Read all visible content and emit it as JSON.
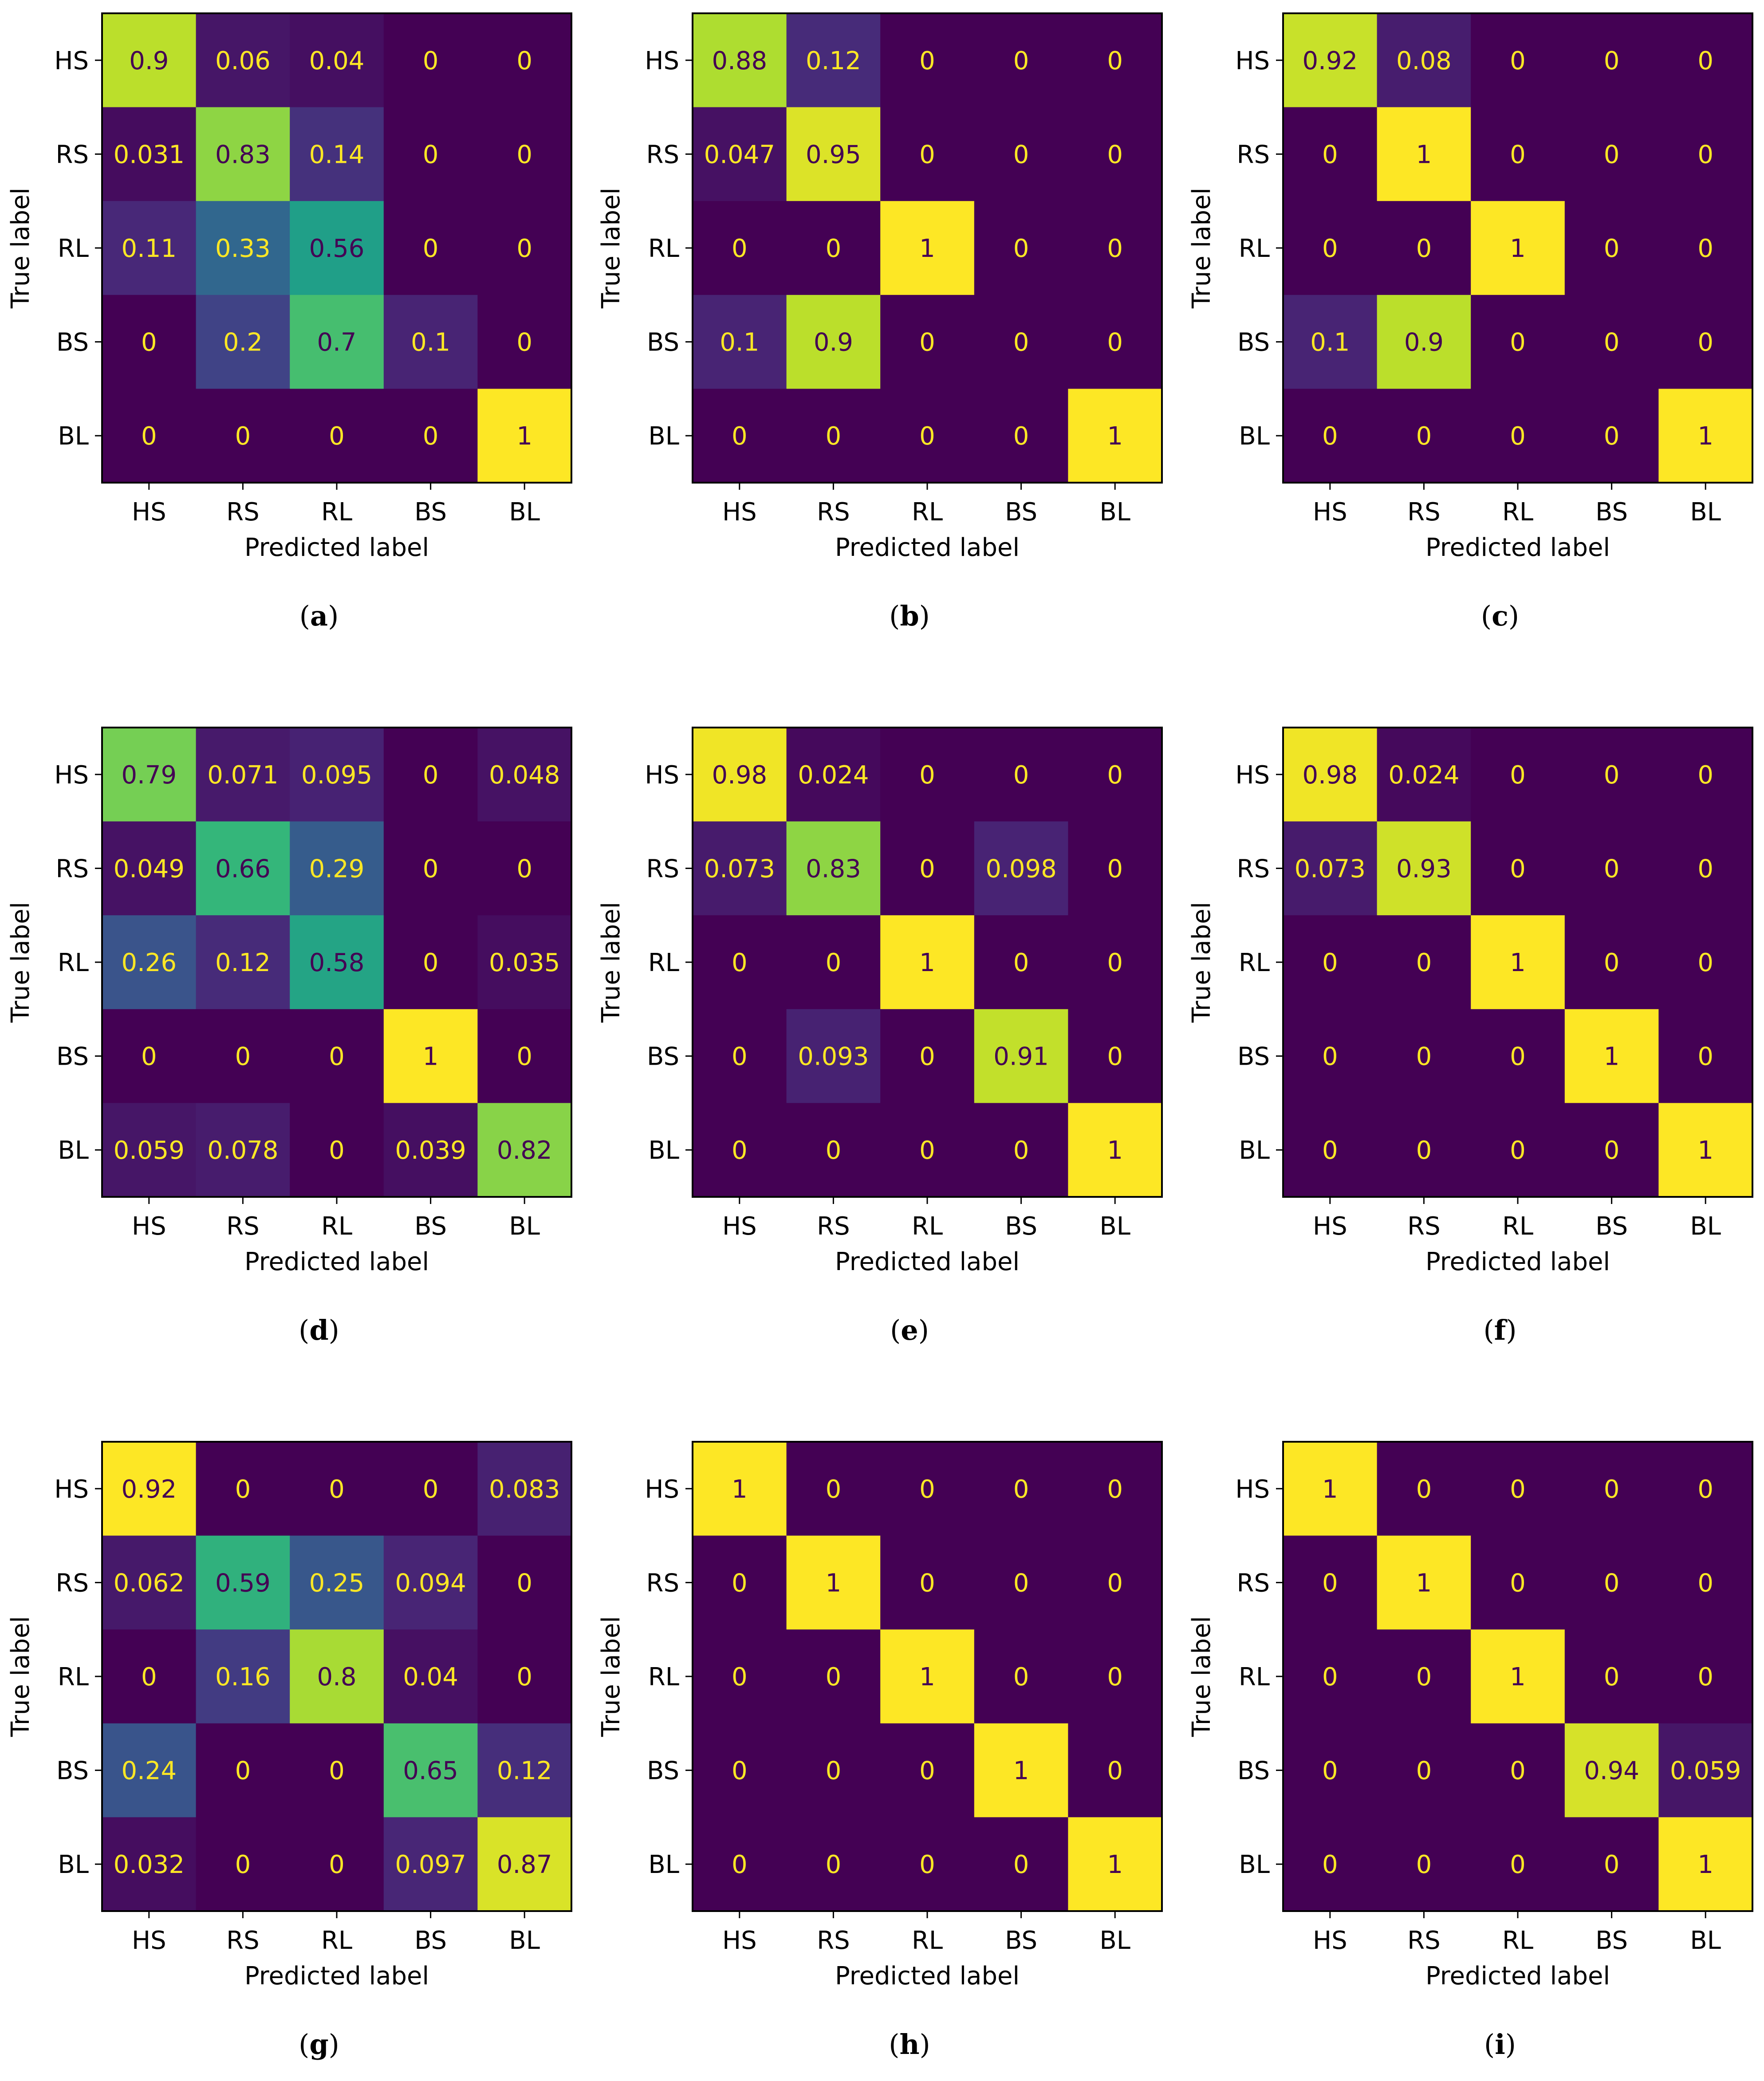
{
  "chart_data": [
    {
      "type": "heatmap",
      "panel": "a",
      "caption_prefix": "(",
      "caption_letter": "a",
      "caption_suffix": ")",
      "xlabel": "Predicted label",
      "ylabel": "True label",
      "x_categories": [
        "HS",
        "RS",
        "RL",
        "BS",
        "BL"
      ],
      "y_categories": [
        "HS",
        "RS",
        "RL",
        "BS",
        "BL"
      ],
      "values": [
        [
          0.9,
          0.06,
          0.04,
          0,
          0
        ],
        [
          0.031,
          0.83,
          0.14,
          0,
          0
        ],
        [
          0.11,
          0.33,
          0.56,
          0,
          0
        ],
        [
          0,
          0.2,
          0.7,
          0.1,
          0
        ],
        [
          0,
          0,
          0,
          0,
          1
        ]
      ],
      "labels": [
        [
          "0.9",
          "0.06",
          "0.04",
          "0",
          "0"
        ],
        [
          "0.031",
          "0.83",
          "0.14",
          "0",
          "0"
        ],
        [
          "0.11",
          "0.33",
          "0.56",
          "0",
          "0"
        ],
        [
          "0",
          "0.2",
          "0.7",
          "0.1",
          "0"
        ],
        [
          "0",
          "0",
          "0",
          "0",
          "1"
        ]
      ]
    },
    {
      "type": "heatmap",
      "panel": "b",
      "caption_prefix": "(",
      "caption_letter": "b",
      "caption_suffix": ")",
      "xlabel": "Predicted label",
      "ylabel": "True label",
      "x_categories": [
        "HS",
        "RS",
        "RL",
        "BS",
        "BL"
      ],
      "y_categories": [
        "HS",
        "RS",
        "RL",
        "BS",
        "BL"
      ],
      "values": [
        [
          0.88,
          0.12,
          0,
          0,
          0
        ],
        [
          0.047,
          0.95,
          0,
          0,
          0
        ],
        [
          0,
          0,
          1,
          0,
          0
        ],
        [
          0.1,
          0.9,
          0,
          0,
          0
        ],
        [
          0,
          0,
          0,
          0,
          1
        ]
      ],
      "labels": [
        [
          "0.88",
          "0.12",
          "0",
          "0",
          "0"
        ],
        [
          "0.047",
          "0.95",
          "0",
          "0",
          "0"
        ],
        [
          "0",
          "0",
          "1",
          "0",
          "0"
        ],
        [
          "0.1",
          "0.9",
          "0",
          "0",
          "0"
        ],
        [
          "0",
          "0",
          "0",
          "0",
          "1"
        ]
      ]
    },
    {
      "type": "heatmap",
      "panel": "c",
      "caption_prefix": "(",
      "caption_letter": "c",
      "caption_suffix": ")",
      "xlabel": "Predicted label",
      "ylabel": "True label",
      "x_categories": [
        "HS",
        "RS",
        "RL",
        "BS",
        "BL"
      ],
      "y_categories": [
        "HS",
        "RS",
        "RL",
        "BS",
        "BL"
      ],
      "values": [
        [
          0.92,
          0.08,
          0,
          0,
          0
        ],
        [
          0,
          1,
          0,
          0,
          0
        ],
        [
          0,
          0,
          1,
          0,
          0
        ],
        [
          0.1,
          0.9,
          0,
          0,
          0
        ],
        [
          0,
          0,
          0,
          0,
          1
        ]
      ],
      "labels": [
        [
          "0.92",
          "0.08",
          "0",
          "0",
          "0"
        ],
        [
          "0",
          "1",
          "0",
          "0",
          "0"
        ],
        [
          "0",
          "0",
          "1",
          "0",
          "0"
        ],
        [
          "0.1",
          "0.9",
          "0",
          "0",
          "0"
        ],
        [
          "0",
          "0",
          "0",
          "0",
          "1"
        ]
      ]
    },
    {
      "type": "heatmap",
      "panel": "d",
      "caption_prefix": "(",
      "caption_letter": "d",
      "caption_suffix": ")",
      "xlabel": "Predicted label",
      "ylabel": "True label",
      "x_categories": [
        "HS",
        "RS",
        "RL",
        "BS",
        "BL"
      ],
      "y_categories": [
        "HS",
        "RS",
        "RL",
        "BS",
        "BL"
      ],
      "values": [
        [
          0.79,
          0.071,
          0.095,
          0,
          0.048
        ],
        [
          0.049,
          0.66,
          0.29,
          0,
          0
        ],
        [
          0.26,
          0.12,
          0.58,
          0,
          0.035
        ],
        [
          0,
          0,
          0,
          1,
          0
        ],
        [
          0.059,
          0.078,
          0,
          0.039,
          0.82
        ]
      ],
      "labels": [
        [
          "0.79",
          "0.071",
          "0.095",
          "0",
          "0.048"
        ],
        [
          "0.049",
          "0.66",
          "0.29",
          "0",
          "0"
        ],
        [
          "0.26",
          "0.12",
          "0.58",
          "0",
          "0.035"
        ],
        [
          "0",
          "0",
          "0",
          "1",
          "0"
        ],
        [
          "0.059",
          "0.078",
          "0",
          "0.039",
          "0.82"
        ]
      ]
    },
    {
      "type": "heatmap",
      "panel": "e",
      "caption_prefix": "(",
      "caption_letter": "e",
      "caption_suffix": ")",
      "xlabel": "Predicted label",
      "ylabel": "True label",
      "x_categories": [
        "HS",
        "RS",
        "RL",
        "BS",
        "BL"
      ],
      "y_categories": [
        "HS",
        "RS",
        "RL",
        "BS",
        "BL"
      ],
      "values": [
        [
          0.98,
          0.024,
          0,
          0,
          0
        ],
        [
          0.073,
          0.83,
          0,
          0.098,
          0
        ],
        [
          0,
          0,
          1,
          0,
          0
        ],
        [
          0,
          0.093,
          0,
          0.91,
          0
        ],
        [
          0,
          0,
          0,
          0,
          1
        ]
      ],
      "labels": [
        [
          "0.98",
          "0.024",
          "0",
          "0",
          "0"
        ],
        [
          "0.073",
          "0.83",
          "0",
          "0.098",
          "0"
        ],
        [
          "0",
          "0",
          "1",
          "0",
          "0"
        ],
        [
          "0",
          "0.093",
          "0",
          "0.91",
          "0"
        ],
        [
          "0",
          "0",
          "0",
          "0",
          "1"
        ]
      ]
    },
    {
      "type": "heatmap",
      "panel": "f",
      "caption_prefix": "(",
      "caption_letter": "f",
      "caption_suffix": ")",
      "xlabel": "Predicted label",
      "ylabel": "True label",
      "x_categories": [
        "HS",
        "RS",
        "RL",
        "BS",
        "BL"
      ],
      "y_categories": [
        "HS",
        "RS",
        "RL",
        "BS",
        "BL"
      ],
      "values": [
        [
          0.98,
          0.024,
          0,
          0,
          0
        ],
        [
          0.073,
          0.93,
          0,
          0,
          0
        ],
        [
          0,
          0,
          1,
          0,
          0
        ],
        [
          0,
          0,
          0,
          1,
          0
        ],
        [
          0,
          0,
          0,
          0,
          1
        ]
      ],
      "labels": [
        [
          "0.98",
          "0.024",
          "0",
          "0",
          "0"
        ],
        [
          "0.073",
          "0.93",
          "0",
          "0",
          "0"
        ],
        [
          "0",
          "0",
          "1",
          "0",
          "0"
        ],
        [
          "0",
          "0",
          "0",
          "1",
          "0"
        ],
        [
          "0",
          "0",
          "0",
          "0",
          "1"
        ]
      ]
    },
    {
      "type": "heatmap",
      "panel": "g",
      "caption_prefix": "(",
      "caption_letter": "g",
      "caption_suffix": ")",
      "xlabel": "Predicted label",
      "ylabel": "True label",
      "x_categories": [
        "HS",
        "RS",
        "RL",
        "BS",
        "BL"
      ],
      "y_categories": [
        "HS",
        "RS",
        "RL",
        "BS",
        "BL"
      ],
      "values": [
        [
          0.92,
          0,
          0,
          0,
          0.083
        ],
        [
          0.062,
          0.59,
          0.25,
          0.094,
          0
        ],
        [
          0,
          0.16,
          0.8,
          0.04,
          0
        ],
        [
          0.24,
          0,
          0,
          0.65,
          0.12
        ],
        [
          0.032,
          0,
          0,
          0.097,
          0.87
        ]
      ],
      "labels": [
        [
          "0.92",
          "0",
          "0",
          "0",
          "0.083"
        ],
        [
          "0.062",
          "0.59",
          "0.25",
          "0.094",
          "0"
        ],
        [
          "0",
          "0.16",
          "0.8",
          "0.04",
          "0"
        ],
        [
          "0.24",
          "0",
          "0",
          "0.65",
          "0.12"
        ],
        [
          "0.032",
          "0",
          "0",
          "0.097",
          "0.87"
        ]
      ]
    },
    {
      "type": "heatmap",
      "panel": "h",
      "caption_prefix": "(",
      "caption_letter": "h",
      "caption_suffix": ")",
      "xlabel": "Predicted label",
      "ylabel": "True label",
      "x_categories": [
        "HS",
        "RS",
        "RL",
        "BS",
        "BL"
      ],
      "y_categories": [
        "HS",
        "RS",
        "RL",
        "BS",
        "BL"
      ],
      "values": [
        [
          1,
          0,
          0,
          0,
          0
        ],
        [
          0,
          1,
          0,
          0,
          0
        ],
        [
          0,
          0,
          1,
          0,
          0
        ],
        [
          0,
          0,
          0,
          1,
          0
        ],
        [
          0,
          0,
          0,
          0,
          1
        ]
      ],
      "labels": [
        [
          "1",
          "0",
          "0",
          "0",
          "0"
        ],
        [
          "0",
          "1",
          "0",
          "0",
          "0"
        ],
        [
          "0",
          "0",
          "1",
          "0",
          "0"
        ],
        [
          "0",
          "0",
          "0",
          "1",
          "0"
        ],
        [
          "0",
          "0",
          "0",
          "0",
          "1"
        ]
      ]
    },
    {
      "type": "heatmap",
      "panel": "i",
      "caption_prefix": "(",
      "caption_letter": "i",
      "caption_suffix": ")",
      "xlabel": "Predicted label",
      "ylabel": "True label",
      "x_categories": [
        "HS",
        "RS",
        "RL",
        "BS",
        "BL"
      ],
      "y_categories": [
        "HS",
        "RS",
        "RL",
        "BS",
        "BL"
      ],
      "values": [
        [
          1,
          0,
          0,
          0,
          0
        ],
        [
          0,
          1,
          0,
          0,
          0
        ],
        [
          0,
          0,
          1,
          0,
          0
        ],
        [
          0,
          0,
          0,
          0.94,
          0.059
        ],
        [
          0,
          0,
          0,
          0,
          1
        ]
      ],
      "labels": [
        [
          "1",
          "0",
          "0",
          "0",
          "0"
        ],
        [
          "0",
          "1",
          "0",
          "0",
          "0"
        ],
        [
          "0",
          "0",
          "1",
          "0",
          "0"
        ],
        [
          "0",
          "0",
          "0",
          "0.94",
          "0.059"
        ],
        [
          "0",
          "0",
          "0",
          "0",
          "1"
        ]
      ]
    }
  ],
  "colormap": {
    "name": "viridis",
    "low_text_color": "#fde725",
    "high_text_color": "#440154"
  }
}
